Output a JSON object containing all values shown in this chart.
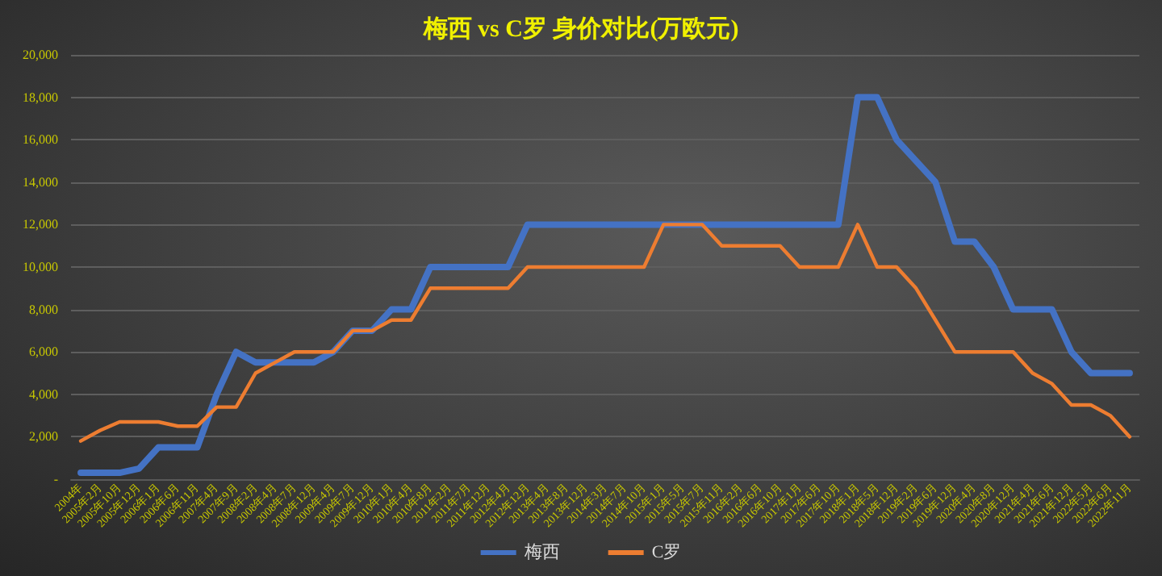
{
  "chart_data": {
    "type": "line",
    "title": "梅西 vs C罗 身价对比(万欧元)",
    "categories": [
      "2004年",
      "2005年2月",
      "2005年10月",
      "2005年12月",
      "2006年1月",
      "2006年6月",
      "2006年11月",
      "2007年4月",
      "2007年9月",
      "2008年2月",
      "2008年4月",
      "2008年7月",
      "2008年12月",
      "2009年4月",
      "2009年7月",
      "2009年12月",
      "2010年1月",
      "2010年4月",
      "2010年8月",
      "2011年2月",
      "2011年7月",
      "2011年12月",
      "2012年4月",
      "2012年12月",
      "2013年4月",
      "2013年8月",
      "2013年12月",
      "2014年3月",
      "2014年7月",
      "2014年10月",
      "2015年1月",
      "2015年5月",
      "2015年7月",
      "2015年11月",
      "2016年2月",
      "2016年6月",
      "2016年10月",
      "2017年1月",
      "2017年6月",
      "2017年10月",
      "2018年1月",
      "2018年5月",
      "2018年12月",
      "2019年2月",
      "2019年6月",
      "2019年12月",
      "2020年4月",
      "2020年8月",
      "2020年12月",
      "2021年4月",
      "2021年6月",
      "2021年12月",
      "2022年5月",
      "2022年6月",
      "2022年11月"
    ],
    "series": [
      {
        "name": "梅西",
        "color": "#4472c4",
        "values": [
          300,
          300,
          300,
          500,
          1500,
          1500,
          1500,
          4000,
          6000,
          5500,
          5500,
          5500,
          5500,
          6000,
          7000,
          7000,
          8000,
          8000,
          10000,
          10000,
          10000,
          10000,
          10000,
          12000,
          12000,
          12000,
          12000,
          12000,
          12000,
          12000,
          12000,
          12000,
          12000,
          12000,
          12000,
          12000,
          12000,
          12000,
          12000,
          12000,
          18000,
          18000,
          16000,
          15000,
          14000,
          11200,
          11200,
          10000,
          8000,
          8000,
          8000,
          6000,
          5000,
          5000,
          5000
        ]
      },
      {
        "name": "C罗",
        "color": "#ed7d31",
        "values": [
          1800,
          2300,
          2700,
          2700,
          2700,
          2500,
          2500,
          3400,
          3400,
          5000,
          5500,
          6000,
          6000,
          6000,
          7000,
          7000,
          7500,
          7500,
          9000,
          9000,
          9000,
          9000,
          9000,
          10000,
          10000,
          10000,
          10000,
          10000,
          10000,
          10000,
          12000,
          12000,
          12000,
          11000,
          11000,
          11000,
          11000,
          10000,
          10000,
          10000,
          12000,
          10000,
          10000,
          9000,
          7500,
          6000,
          6000,
          6000,
          6000,
          5000,
          4500,
          3500,
          3500,
          3000,
          2000
        ]
      }
    ],
    "ylim": [
      0,
      20000
    ],
    "yticks": [
      {
        "value": 0,
        "label": "-"
      },
      {
        "value": 2000,
        "label": "2,000"
      },
      {
        "value": 4000,
        "label": "4,000"
      },
      {
        "value": 6000,
        "label": "6,000"
      },
      {
        "value": 8000,
        "label": "8,000"
      },
      {
        "value": 10000,
        "label": "10,000"
      },
      {
        "value": 12000,
        "label": "12,000"
      },
      {
        "value": 14000,
        "label": "14,000"
      },
      {
        "value": 16000,
        "label": "16,000"
      },
      {
        "value": 18000,
        "label": "18,000"
      },
      {
        "value": 20000,
        "label": "20,000"
      }
    ],
    "grid": "y",
    "legend": "bottom",
    "marker": "none",
    "line_style": "solid"
  }
}
